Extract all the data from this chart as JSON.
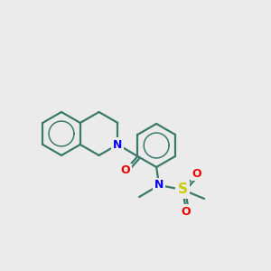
{
  "background_color": "#ebebeb",
  "bond_color": "#3a7a6a",
  "atom_colors": {
    "N": "#0000ee",
    "O": "#ee0000",
    "S": "#cccc00",
    "C": "#2d6b5e"
  },
  "figsize": [
    3.0,
    3.0
  ],
  "dpi": 100
}
